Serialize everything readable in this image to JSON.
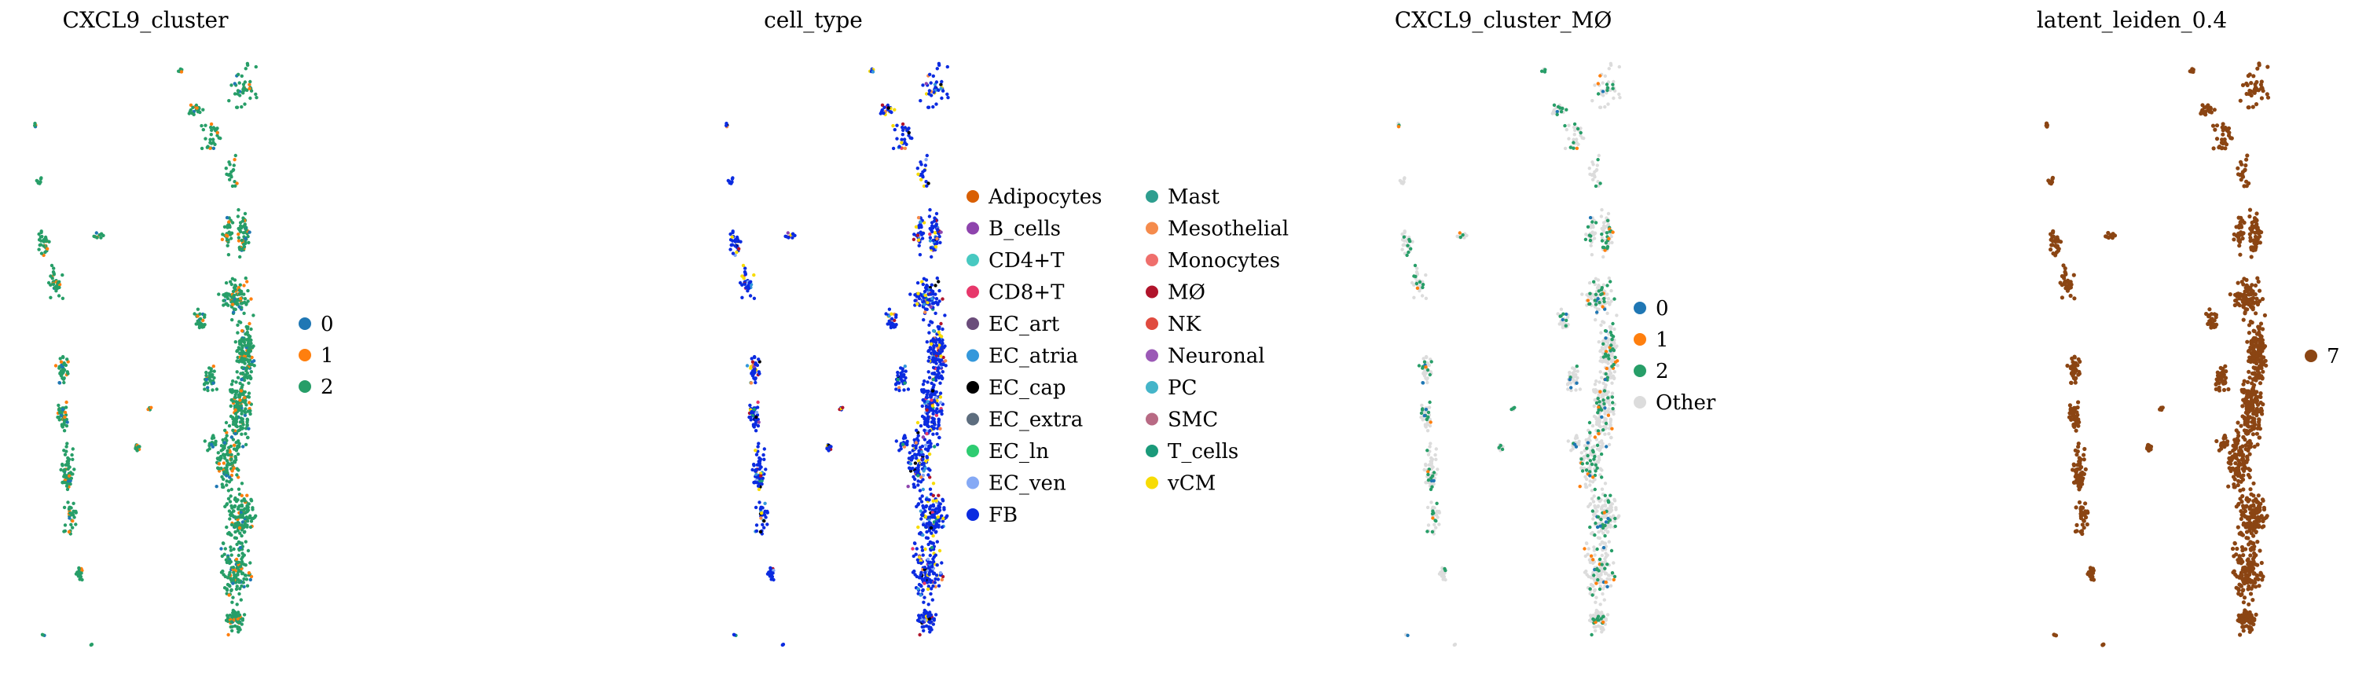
{
  "chart_data": [
    {
      "type": "scatter",
      "title": "CXCL9_cluster",
      "legend_placement": "right",
      "legend": [
        {
          "label": "0",
          "color": "#1f77b4"
        },
        {
          "label": "1",
          "color": "#ff7f0e"
        },
        {
          "label": "2",
          "color": "#279e68"
        }
      ],
      "grid": false,
      "axes_visible": false
    },
    {
      "type": "scatter",
      "title": "cell_type",
      "legend_placement": "right",
      "legend": [
        {
          "label": "Adipocytes",
          "color": "#d95f02"
        },
        {
          "label": "B_cells",
          "color": "#8e44ad"
        },
        {
          "label": "CD4+T",
          "color": "#48c9c1"
        },
        {
          "label": "CD8+T",
          "color": "#e7386b"
        },
        {
          "label": "EC_art",
          "color": "#6a4c7a"
        },
        {
          "label": "EC_atria",
          "color": "#3498db"
        },
        {
          "label": "EC_cap",
          "color": "#000000"
        },
        {
          "label": "EC_extra",
          "color": "#5d6d7e"
        },
        {
          "label": "EC_ln",
          "color": "#2ecc71"
        },
        {
          "label": "EC_ven",
          "color": "#85a9f5"
        },
        {
          "label": "FB",
          "color": "#0b2be0"
        },
        {
          "label": "Mast",
          "color": "#2e9e8f"
        },
        {
          "label": "Mesothelial",
          "color": "#f58b4c"
        },
        {
          "label": "Monocytes",
          "color": "#ef6f6c"
        },
        {
          "label": "MØ",
          "color": "#b0142b"
        },
        {
          "label": "NK",
          "color": "#e04b3f"
        },
        {
          "label": "Neuronal",
          "color": "#9b59b6"
        },
        {
          "label": "PC",
          "color": "#45b5c9"
        },
        {
          "label": "SMC",
          "color": "#b86a84"
        },
        {
          "label": "T_cells",
          "color": "#1a9a7a"
        },
        {
          "label": "vCM",
          "color": "#f7dc05"
        }
      ],
      "grid": false,
      "axes_visible": false
    },
    {
      "type": "scatter",
      "title": "CXCL9_cluster_MØ",
      "legend_placement": "right",
      "legend": [
        {
          "label": "0",
          "color": "#1f77b4"
        },
        {
          "label": "1",
          "color": "#ff7f0e"
        },
        {
          "label": "2",
          "color": "#279e68"
        },
        {
          "label": "Other",
          "color": "#dcdcdc"
        }
      ],
      "grid": false,
      "axes_visible": false
    },
    {
      "type": "scatter",
      "title": "latent_leiden_0.4",
      "legend_placement": "right",
      "legend": [
        {
          "label": "7",
          "color": "#8b4513"
        }
      ],
      "grid": false,
      "axes_visible": false
    }
  ]
}
